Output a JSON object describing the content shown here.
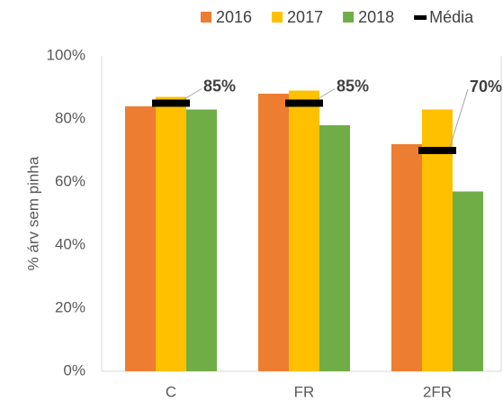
{
  "chart_data": {
    "type": "bar",
    "y_label": "% árv sem pinha",
    "categories": [
      "C",
      "FR",
      "2FR"
    ],
    "series": [
      {
        "name": "2016",
        "color": "#ED7D31",
        "values": [
          84,
          88,
          72
        ]
      },
      {
        "name": "2017",
        "color": "#FFC000",
        "values": [
          87,
          89,
          83
        ]
      },
      {
        "name": "2018",
        "color": "#70AD47",
        "values": [
          83,
          78,
          57
        ]
      },
      {
        "name": "Média",
        "color": "#000000",
        "style": "dash",
        "values": [
          85,
          85,
          70
        ],
        "value_labels": [
          "85%",
          "85%",
          "70%"
        ]
      }
    ],
    "ylim": [
      0,
      100
    ],
    "yticks": [
      {
        "value": 0,
        "label": "0%"
      },
      {
        "value": 20,
        "label": "20%"
      },
      {
        "value": 40,
        "label": "40%"
      },
      {
        "value": 60,
        "label": "60%"
      },
      {
        "value": 80,
        "label": "80%"
      },
      {
        "value": 100,
        "label": "100%"
      }
    ],
    "legend": "top"
  }
}
